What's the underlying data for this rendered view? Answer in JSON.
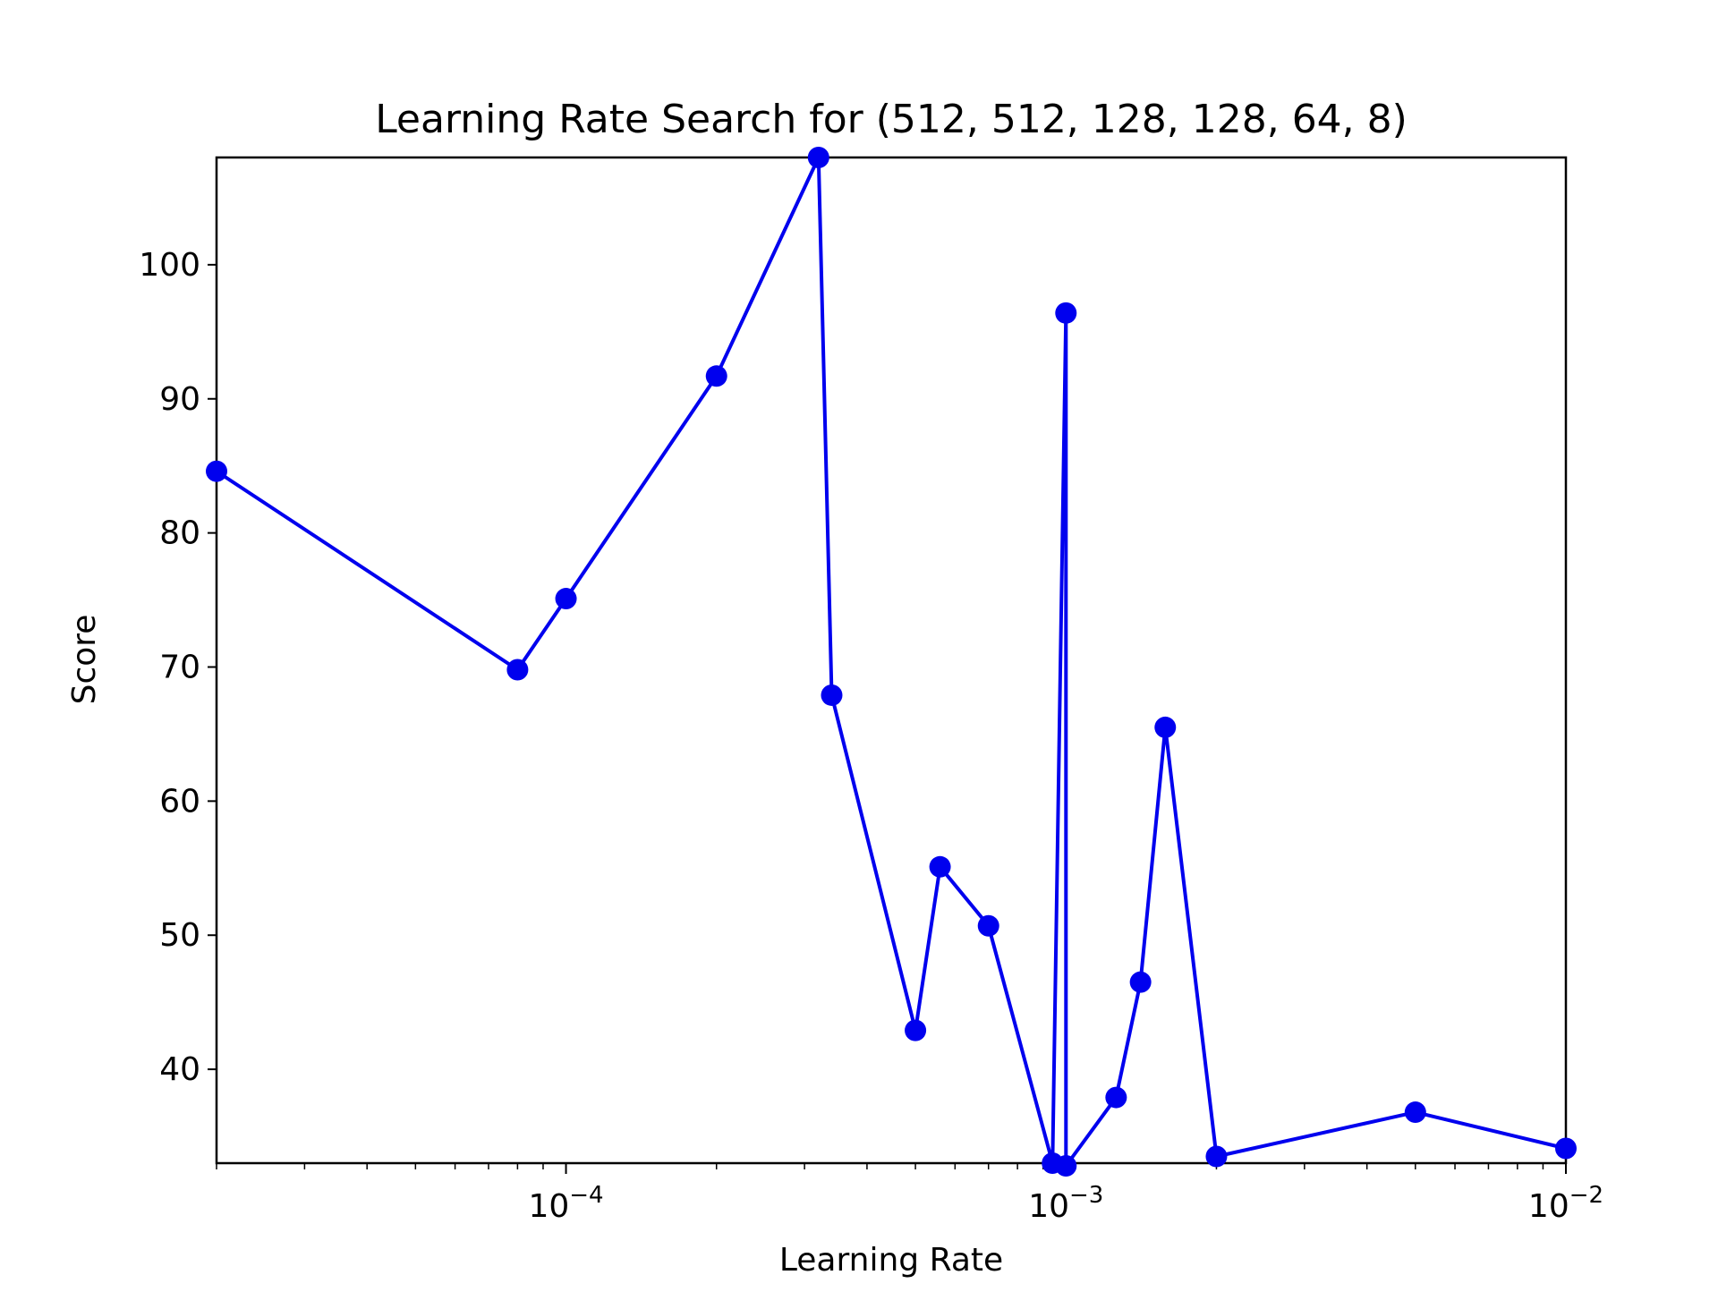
{
  "chart_data": {
    "type": "line",
    "title": "Learning Rate Search for (512, 512, 128, 128, 64, 8)",
    "xlabel": "Learning Rate",
    "ylabel": "Score",
    "xscale": "log",
    "xlim": [
      2e-05,
      0.01
    ],
    "ylim": [
      33,
      108
    ],
    "grid": false,
    "legend": "none",
    "line_color": "#0000ee",
    "marker": "circle",
    "x_ticks": [
      {
        "value": 0.0001,
        "base": "10",
        "exp": "−4"
      },
      {
        "value": 0.001,
        "base": "10",
        "exp": "−3"
      },
      {
        "value": 0.01,
        "base": "10",
        "exp": "−2"
      }
    ],
    "y_ticks": [
      40,
      50,
      60,
      70,
      80,
      90,
      100
    ],
    "series": [
      {
        "x": [
          2e-05,
          8e-05,
          0.0001,
          0.0002,
          0.00032,
          0.00034,
          0.0005,
          0.00056,
          0.0007,
          0.00094,
          0.001,
          0.001,
          0.00126,
          0.00141,
          0.00158,
          0.002,
          0.005,
          0.01
        ],
        "y": [
          84.6,
          69.8,
          75.1,
          91.7,
          108.0,
          67.9,
          42.9,
          55.1,
          50.7,
          33.0,
          96.4,
          32.8,
          37.9,
          46.5,
          65.5,
          33.5,
          36.8,
          34.1
        ]
      }
    ]
  }
}
